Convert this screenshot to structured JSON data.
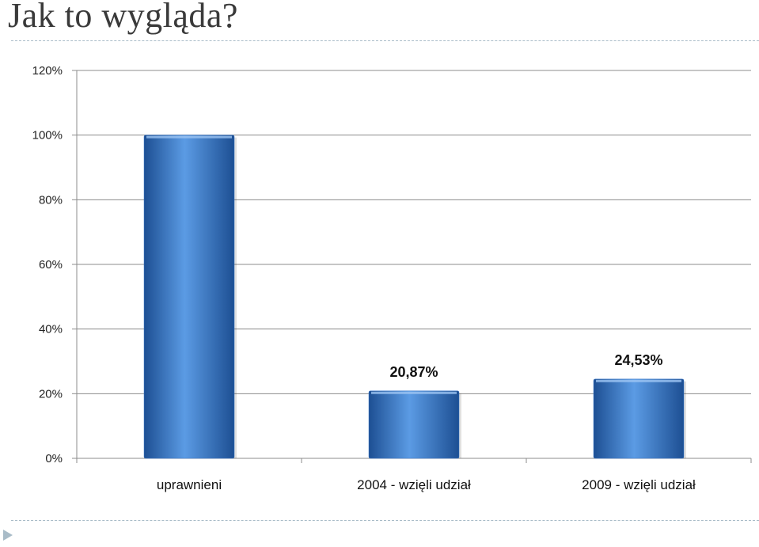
{
  "slide": {
    "title": "Jak to wygląda?"
  },
  "colors": {
    "bar_light": "#5b9be4",
    "bar_mid": "#3a78cc",
    "bar_dark": "#1d4f93",
    "grid": "#8c8c8c",
    "rule": "#a9bcc8",
    "nav_arrow": "#a9bcc8"
  },
  "icons": {
    "nav": "triangle-right-icon"
  },
  "chart_data": {
    "type": "bar",
    "title": "",
    "xlabel": "",
    "ylabel": "",
    "categories": [
      "uprawnieni",
      "2004 - wzięli udział",
      "2009 - wzięli udział"
    ],
    "values": [
      100,
      20.87,
      24.53
    ],
    "data_labels": [
      "",
      "20,87%",
      "24,53%"
    ],
    "ylim": [
      0,
      120
    ],
    "yticks": [
      0,
      20,
      40,
      60,
      80,
      100,
      120
    ],
    "ytick_labels": [
      "0%",
      "20%",
      "40%",
      "60%",
      "80%",
      "100%",
      "120%"
    ],
    "grid": true,
    "legend": "none"
  }
}
